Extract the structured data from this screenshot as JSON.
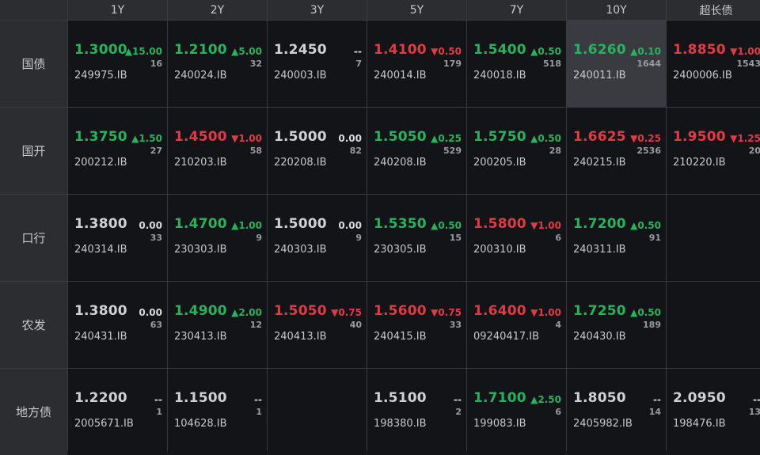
{
  "colors": {
    "up": "#27b35e",
    "down": "#e23a44",
    "flat": "#d0d1d4"
  },
  "columns": [
    "1Y",
    "2Y",
    "3Y",
    "5Y",
    "7Y",
    "10Y",
    "超长债"
  ],
  "rows": [
    {
      "label": "国债",
      "cells": [
        {
          "price": "1.3000",
          "dir": "up",
          "change": "▲15.00",
          "vol": "16",
          "code": "249975.IB"
        },
        {
          "price": "1.2100",
          "dir": "up",
          "change": "▲5.00",
          "vol": "32",
          "code": "240024.IB"
        },
        {
          "price": "1.2450",
          "dir": "flat",
          "change": "--",
          "vol": "7",
          "code": "240003.IB"
        },
        {
          "price": "1.4100",
          "dir": "down",
          "change": "▼0.50",
          "vol": "179",
          "code": "240014.IB"
        },
        {
          "price": "1.5400",
          "dir": "up",
          "change": "▲0.50",
          "vol": "518",
          "code": "240018.IB"
        },
        {
          "price": "1.6260",
          "dir": "up",
          "change": "▲0.10",
          "vol": "1644",
          "code": "240011.IB",
          "selected": true
        },
        {
          "price": "1.8850",
          "dir": "down",
          "change": "▼1.00",
          "vol": "1543",
          "code": "2400006.IB"
        }
      ]
    },
    {
      "label": "国开",
      "cells": [
        {
          "price": "1.3750",
          "dir": "up",
          "change": "▲1.50",
          "vol": "27",
          "code": "200212.IB"
        },
        {
          "price": "1.4500",
          "dir": "down",
          "change": "▼1.00",
          "vol": "58",
          "code": "210203.IB"
        },
        {
          "price": "1.5000",
          "dir": "flat",
          "change": "0.00",
          "vol": "82",
          "code": "220208.IB"
        },
        {
          "price": "1.5050",
          "dir": "up",
          "change": "▲0.25",
          "vol": "529",
          "code": "240208.IB"
        },
        {
          "price": "1.5750",
          "dir": "up",
          "change": "▲0.50",
          "vol": "28",
          "code": "200205.IB"
        },
        {
          "price": "1.6625",
          "dir": "down",
          "change": "▼0.25",
          "vol": "2536",
          "code": "240215.IB"
        },
        {
          "price": "1.9500",
          "dir": "down",
          "change": "▼1.25",
          "vol": "20",
          "code": "210220.IB"
        }
      ]
    },
    {
      "label": "口行",
      "cells": [
        {
          "price": "1.3800",
          "dir": "flat",
          "change": "0.00",
          "vol": "33",
          "code": "240314.IB"
        },
        {
          "price": "1.4700",
          "dir": "up",
          "change": "▲1.00",
          "vol": "9",
          "code": "230303.IB"
        },
        {
          "price": "1.5000",
          "dir": "flat",
          "change": "0.00",
          "vol": "9",
          "code": "240303.IB"
        },
        {
          "price": "1.5350",
          "dir": "up",
          "change": "▲0.50",
          "vol": "15",
          "code": "230305.IB"
        },
        {
          "price": "1.5800",
          "dir": "down",
          "change": "▼1.00",
          "vol": "6",
          "code": "200310.IB"
        },
        {
          "price": "1.7200",
          "dir": "up",
          "change": "▲0.50",
          "vol": "91",
          "code": "240311.IB"
        },
        null
      ]
    },
    {
      "label": "农发",
      "cells": [
        {
          "price": "1.3800",
          "dir": "flat",
          "change": "0.00",
          "vol": "63",
          "code": "240431.IB"
        },
        {
          "price": "1.4900",
          "dir": "up",
          "change": "▲2.00",
          "vol": "12",
          "code": "230413.IB"
        },
        {
          "price": "1.5050",
          "dir": "down",
          "change": "▼0.75",
          "vol": "40",
          "code": "240413.IB"
        },
        {
          "price": "1.5600",
          "dir": "down",
          "change": "▼0.75",
          "vol": "33",
          "code": "240415.IB"
        },
        {
          "price": "1.6400",
          "dir": "down",
          "change": "▼1.00",
          "vol": "4",
          "code": "09240417.IB"
        },
        {
          "price": "1.7250",
          "dir": "up",
          "change": "▲0.50",
          "vol": "189",
          "code": "240430.IB"
        },
        null
      ]
    },
    {
      "label": "地方债",
      "cells": [
        {
          "price": "1.2200",
          "dir": "flat",
          "change": "--",
          "vol": "1",
          "code": "2005671.IB"
        },
        {
          "price": "1.1500",
          "dir": "flat",
          "change": "--",
          "vol": "1",
          "code": "104628.IB"
        },
        null,
        {
          "price": "1.5100",
          "dir": "flat",
          "change": "--",
          "vol": "2",
          "code": "198380.IB"
        },
        {
          "price": "1.7100",
          "dir": "up",
          "change": "▲2.50",
          "vol": "6",
          "code": "199083.IB"
        },
        {
          "price": "1.8050",
          "dir": "flat",
          "change": "--",
          "vol": "14",
          "code": "2405982.IB"
        },
        {
          "price": "2.0950",
          "dir": "flat",
          "change": "--",
          "vol": "13",
          "code": "198476.IB"
        }
      ]
    }
  ]
}
